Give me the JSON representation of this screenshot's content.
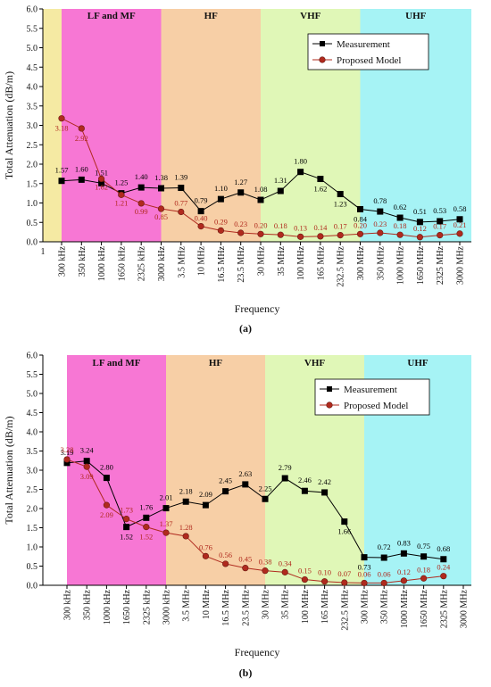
{
  "chart_data": [
    {
      "panel_label": "(a)",
      "type": "line",
      "xlabel": "Frequency",
      "ylabel": "Total Attenuation (dB/m)",
      "ylim": [
        0,
        6
      ],
      "yticks": [
        "0.0",
        "0.5",
        "1.0",
        "1.5",
        "2.0",
        "2.5",
        "3.0",
        "3.5",
        "4.0",
        "4.5",
        "5.0",
        "5.5",
        "6.0"
      ],
      "axis_start_label": "1",
      "categories": [
        "300 kHz",
        "350 kHz",
        "1000 kHz",
        "1650 kHz",
        "2325 kHz",
        "3000 kHz",
        "3.5 MHz",
        "10 MHz",
        "16.5 MHz",
        "23.5 MHz",
        "30 MHz",
        "35 MHz",
        "100 MHz",
        "165 MHz",
        "232.5 MHz",
        "300 MHz",
        "350 MHz",
        "1000 MHz",
        "1650 MHz",
        "2325 MHz",
        "3000 MHz"
      ],
      "bands": [
        {
          "label": "LF and MF",
          "from": 0,
          "to": 5,
          "color": "#f777d4"
        },
        {
          "label": "HF",
          "from": 5,
          "to": 10,
          "color": "#f7cfa6"
        },
        {
          "label": "VHF",
          "from": 10,
          "to": 15,
          "color": "#e0f7b7"
        },
        {
          "label": "UHF",
          "from": 15,
          "to": 20,
          "color": "#a6f3f5"
        }
      ],
      "pre_band_color": "#f5eaa3",
      "legend_position": "top-right",
      "series": [
        {
          "name": "Measurement",
          "color": "#000000",
          "marker": "square",
          "label_color": "#000000",
          "values": [
            1.57,
            1.6,
            1.51,
            1.25,
            1.4,
            1.38,
            1.39,
            0.79,
            1.1,
            1.27,
            1.08,
            1.31,
            1.8,
            1.62,
            1.23,
            0.84,
            0.78,
            0.62,
            0.51,
            0.53,
            0.58
          ],
          "labels": [
            "1.57",
            "1.60",
            "1.51",
            "1.25",
            "1.40",
            "1.38",
            "1.39",
            "0.79",
            "1.10",
            "1.27",
            "1.08",
            "1.31",
            "1.80",
            "1.62",
            "1.23",
            "0.84",
            "0.78",
            "0.62",
            "0.51",
            "0.53",
            "0.58"
          ]
        },
        {
          "name": "Proposed Model",
          "color": "#b02a1e",
          "marker": "circle",
          "label_color": "#b02a1e",
          "values": [
            3.18,
            2.92,
            1.62,
            1.21,
            0.99,
            0.85,
            0.77,
            0.4,
            0.29,
            0.23,
            0.2,
            0.18,
            0.13,
            0.14,
            0.17,
            0.2,
            0.23,
            0.18,
            0.12,
            0.17,
            0.21
          ],
          "labels": [
            "3.18",
            "2.92",
            "1.62",
            "1.21",
            "0.99",
            "0.85",
            "0.77",
            "0.40",
            "0.29",
            "0.23",
            "0.20",
            "0.18",
            "0.13",
            "0.14",
            "0.17",
            "0.20",
            "0.23",
            "0.18",
            "0.12",
            "0.17",
            "0.21"
          ]
        }
      ]
    },
    {
      "panel_label": "(b)",
      "type": "line",
      "xlabel": "Frequency",
      "ylabel": "Total Attenuation (dB/m)",
      "ylim": [
        0,
        6
      ],
      "yticks": [
        "0.0",
        "0.5",
        "1.0",
        "1.5",
        "2.0",
        "2.5",
        "3.0",
        "3.5",
        "4.0",
        "4.5",
        "5.0",
        "5.5",
        "6.0"
      ],
      "axis_start_label": "",
      "categories": [
        "300 kHz",
        "350 kHz",
        "1000 kHz",
        "1650 kHz",
        "2325 kHz",
        "3000 kHz",
        "3.5 MHz",
        "10 MHz",
        "16.5 MHz",
        "23.5 MHz",
        "30 MHz",
        "35 MHz",
        "100 MHz",
        "165 MHz",
        "232.5 MHz",
        "300 MHz",
        "350 MHz",
        "1000 MHz",
        "1650 MHz",
        "2325 MHz",
        "3000 MHz"
      ],
      "bands": [
        {
          "label": "LF and MF",
          "from": 0,
          "to": 5,
          "color": "#f777d4"
        },
        {
          "label": "HF",
          "from": 5,
          "to": 10,
          "color": "#f7cfa6"
        },
        {
          "label": "VHF",
          "from": 10,
          "to": 15,
          "color": "#e0f7b7"
        },
        {
          "label": "UHF",
          "from": 15,
          "to": 20,
          "color": "#a6f3f5"
        }
      ],
      "pre_band_color": "",
      "legend_position": "top-right",
      "series": [
        {
          "name": "Measurement",
          "color": "#000000",
          "marker": "square",
          "label_color": "#000000",
          "values": [
            3.19,
            3.24,
            2.8,
            1.52,
            1.76,
            2.01,
            2.18,
            2.09,
            2.45,
            2.63,
            2.25,
            2.79,
            2.46,
            2.42,
            1.66,
            0.73,
            0.72,
            0.83,
            0.75,
            0.68,
            null
          ],
          "labels": [
            "3.19",
            "3.24",
            "2.80",
            "1.52",
            "1.76",
            "2.01",
            "2.18",
            "2.09",
            "2.45",
            "2.63",
            "2.25",
            "2.79",
            "2.46",
            "2.42",
            "1.66",
            "0.73",
            "0.72",
            "0.83",
            "0.75",
            "0.68",
            ""
          ]
        },
        {
          "name": "Proposed Model",
          "color": "#b02a1e",
          "marker": "circle",
          "label_color": "#b02a1e",
          "values": [
            3.28,
            3.09,
            2.09,
            1.73,
            1.52,
            1.37,
            1.28,
            0.76,
            0.56,
            0.45,
            0.38,
            0.34,
            0.15,
            0.1,
            0.07,
            0.06,
            0.06,
            0.12,
            0.18,
            0.24,
            null
          ],
          "labels": [
            "3.28",
            "3.09",
            "2.09",
            "1.73",
            "1.52",
            "1.37",
            "1.28",
            "0.76",
            "0.56",
            "0.45",
            "0.38",
            "0.34",
            "0.15",
            "0.10",
            "0.07",
            "0.06",
            "0.06",
            "0.12",
            "0.18",
            "0.24",
            ""
          ]
        }
      ]
    }
  ]
}
